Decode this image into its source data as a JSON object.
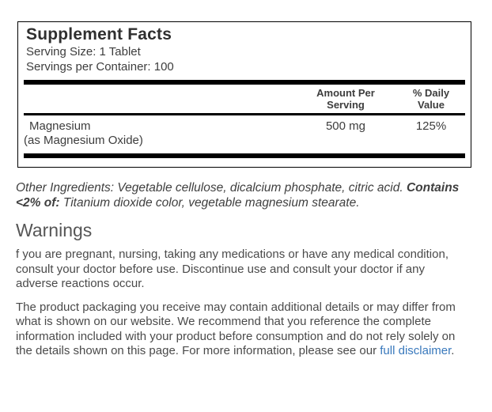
{
  "supplement_facts": {
    "title": "Supplement Facts",
    "serving_size": "Serving Size: 1 Tablet",
    "servings_per_container": "Servings per Container: 100",
    "columns": {
      "amount": "Amount Per\nServing",
      "daily_value": "% Daily\nValue"
    },
    "rows": [
      {
        "name": "Magnesium",
        "form": "(as Magnesium Oxide)",
        "amount": "500 mg",
        "daily_value": "125%"
      }
    ]
  },
  "other_ingredients": {
    "text_before": "Other Ingredients: Vegetable cellulose, dicalcium phosphate, citric acid. ",
    "bold_text": "Contains <2% of:",
    "text_after": " Titanium dioxide color, vegetable magnesium stearate."
  },
  "warnings": {
    "heading": "Warnings",
    "paragraph_1": "f you are pregnant, nursing, taking any medications or have any medical condition, consult your doctor before use. Discontinue use and consult your doctor if any adverse reactions occur.",
    "paragraph_2_before_link": "The product packaging you receive may contain additional details or may differ from what is shown on our website. We recommend that you reference the complete information included with your product before consumption and do not rely solely on the details shown on this page. For more information, please see our ",
    "link_text": "full disclaimer",
    "paragraph_2_after_link": "."
  },
  "colors": {
    "link": "#3878bc",
    "body_text": "#4a4a4a",
    "heading_text": "#565656",
    "label_text": "#3d3d3d",
    "rule": "#000000",
    "background": "#ffffff"
  }
}
